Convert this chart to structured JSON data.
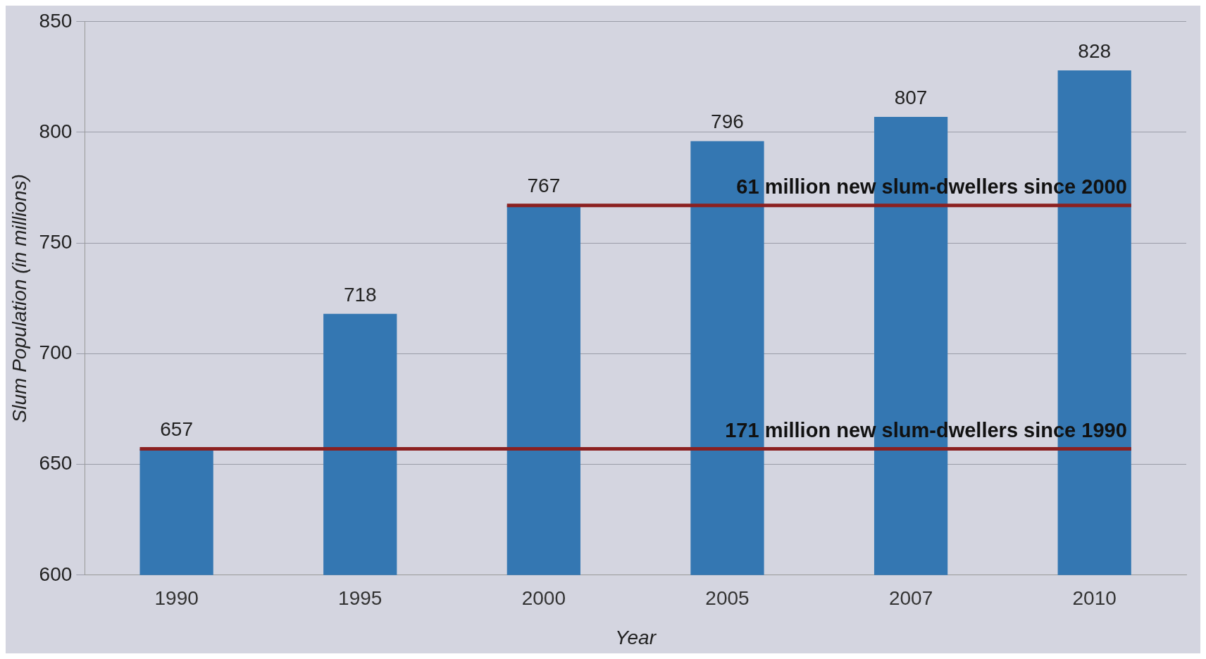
{
  "chart_data": {
    "type": "bar",
    "xlabel": "Year",
    "ylabel": "Slum Population (in millions)",
    "categories": [
      "1990",
      "1995",
      "2000",
      "2005",
      "2007",
      "2010"
    ],
    "values": [
      657,
      718,
      767,
      796,
      807,
      828
    ],
    "color": "#3477b2",
    "ylim": [
      600,
      850
    ],
    "yticks": [
      600,
      650,
      700,
      750,
      800,
      850
    ],
    "grid": "y",
    "legend": false,
    "data_labels": true,
    "ref_lines": [
      {
        "axis": "y",
        "value": 767,
        "label": "61 million new slum-dwellers since 2000",
        "color": "#8b2020"
      },
      {
        "axis": "y",
        "value": 657,
        "label": "171 million new slum-dwellers since 1990",
        "color": "#8b2020"
      }
    ]
  }
}
